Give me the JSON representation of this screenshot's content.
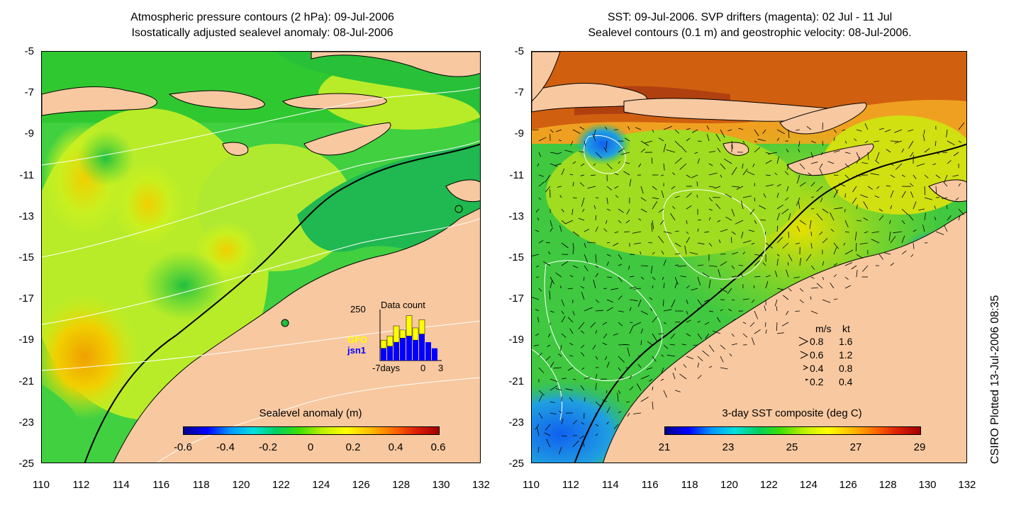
{
  "left_panel": {
    "title_line1": "Atmospheric pressure contours (2 hPa): 09-Jul-2006",
    "title_line2": "Isostatically adjusted sealevel anomaly: 08-Jul-2006",
    "colorbar": {
      "title": "Sealevel anomaly (m)",
      "ticks": [
        "-0.6",
        "-0.4",
        "-0.2",
        "0",
        "0.2",
        "0.4",
        "0.6"
      ],
      "colors": [
        "#00008b",
        "#0000ff",
        "#0096ff",
        "#00e0e0",
        "#00d060",
        "#40e000",
        "#c0f000",
        "#ffff00",
        "#ffc000",
        "#ff7000",
        "#e02000",
        "#a00000"
      ]
    },
    "histogram": {
      "title": "Data count",
      "ymax_label": "250",
      "satellite1": "GFO",
      "satellite1_color": "#ffff00",
      "satellite2": "jsn1",
      "satellite2_color": "#0000ff",
      "xlabel_left": "-7days",
      "xlabel_mid": "0",
      "xlabel_right": "3",
      "jsn1_counts": [
        60,
        70,
        90,
        110,
        120,
        100,
        130,
        90,
        60
      ],
      "gfo_counts": [
        40,
        50,
        80,
        40,
        100,
        60,
        70,
        0,
        0
      ]
    }
  },
  "right_panel": {
    "title_line1": "SST: 09-Jul-2006. SVP drifters (magenta): 02 Jul - 11 Jul",
    "title_line2": "Sealevel contours (0.1 m) and geostrophic velocity: 08-Jul-2006.",
    "colorbar": {
      "title": "3-day SST composite (deg C)",
      "ticks": [
        "21",
        "23",
        "25",
        "27",
        "29"
      ],
      "colors": [
        "#00008b",
        "#0000ff",
        "#0096ff",
        "#00e0e0",
        "#00d060",
        "#40e000",
        "#c0f000",
        "#ffff00",
        "#ffc000",
        "#ff7000",
        "#e02000",
        "#a00000"
      ]
    },
    "velocity_legend": {
      "header_ms": "m/s",
      "header_kt": "kt",
      "rows": [
        {
          "ms": "0.8",
          "kt": "1.6"
        },
        {
          "ms": "0.6",
          "kt": "1.2"
        },
        {
          "ms": "0.4",
          "kt": "0.8"
        },
        {
          "ms": "0.2",
          "kt": "0.4"
        }
      ]
    }
  },
  "axes": {
    "y_labels": [
      "-5",
      "-7",
      "-9",
      "-11",
      "-13",
      "-15",
      "-17",
      "-19",
      "-21",
      "-23",
      "-25"
    ],
    "x_labels": [
      "110",
      "112",
      "114",
      "116",
      "118",
      "120",
      "122",
      "124",
      "126",
      "128",
      "130",
      "132"
    ]
  },
  "credit": "CSIRO Plotted 13-Jul-2006 08:35",
  "colors": {
    "land": "#f8c8a0",
    "ocean_green": "#40d040",
    "ocean_yellow": "#d0f020",
    "sst_warm": "#e07010",
    "sst_cool": "#2080ff"
  }
}
